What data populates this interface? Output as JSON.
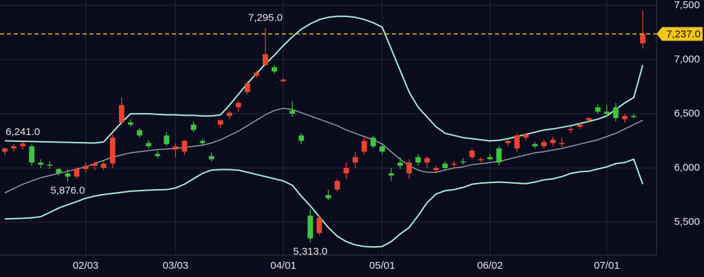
{
  "chart_data": {
    "type": "candlestick",
    "categories": [
      null,
      null,
      null,
      null,
      null,
      null,
      null,
      null,
      null,
      "02/03",
      null,
      null,
      null,
      null,
      null,
      null,
      null,
      null,
      null,
      "03/03",
      null,
      null,
      null,
      null,
      null,
      null,
      null,
      null,
      null,
      null,
      null,
      "04/01",
      null,
      null,
      null,
      null,
      null,
      null,
      null,
      null,
      null,
      null,
      "05/01",
      null,
      null,
      null,
      null,
      null,
      null,
      null,
      null,
      null,
      null,
      null,
      "06/02",
      null,
      null,
      null,
      null,
      null,
      null,
      null,
      null,
      null,
      null,
      null,
      null,
      "07/01",
      null,
      null,
      null,
      null
    ],
    "open": [
      6150,
      6180,
      6200,
      6200,
      6050,
      6030,
      5990,
      5950,
      5920,
      5990,
      6020,
      6000,
      6040,
      6420,
      6420,
      6350,
      6230,
      6130,
      6300,
      6170,
      6150,
      6400,
      6250,
      6110,
      6400,
      6480,
      6560,
      6700,
      6850,
      6950,
      6930,
      6800,
      6530,
      6300,
      5560,
      5400,
      5750,
      5800,
      5950,
      6050,
      6150,
      6280,
      6200,
      5950,
      6050,
      5950,
      6100,
      6050,
      5980,
      6040,
      6030,
      6060,
      6100,
      6070,
      6100,
      6180,
      6230,
      6180,
      6280,
      6220,
      6200,
      6230,
      6220,
      6350,
      6380,
      6440,
      6560,
      6520,
      6560,
      6450,
      6480,
      7150
    ],
    "high": [
      6190,
      6220,
      6241,
      6220,
      6080,
      6060,
      6000,
      5990,
      6010,
      6050,
      6060,
      6060,
      6310,
      6650,
      6450,
      6370,
      6260,
      6160,
      6330,
      6230,
      6260,
      6430,
      6270,
      6140,
      6450,
      6530,
      6620,
      6800,
      6900,
      7295,
      6950,
      6830,
      6620,
      6320,
      5620,
      5560,
      5800,
      5900,
      6050,
      6150,
      6300,
      6300,
      6230,
      6000,
      6100,
      6080,
      6130,
      6110,
      6020,
      6060,
      6060,
      6090,
      6180,
      6100,
      6130,
      6200,
      6260,
      6320,
      6320,
      6240,
      6260,
      6290,
      6280,
      6380,
      6420,
      6470,
      6590,
      6580,
      6600,
      6500,
      6500,
      7450
    ],
    "low": [
      6120,
      6150,
      6170,
      6020,
      6000,
      5990,
      5930,
      5876,
      5900,
      5960,
      5980,
      5980,
      6000,
      6400,
      6380,
      6280,
      6180,
      6090,
      6200,
      6100,
      6120,
      6330,
      6200,
      6060,
      6370,
      6450,
      6520,
      6680,
      6830,
      6940,
      6870,
      6790,
      6470,
      6220,
      5313,
      5380,
      5700,
      5780,
      5900,
      6000,
      6120,
      6180,
      6130,
      5880,
      5990,
      5900,
      6020,
      6000,
      5950,
      5980,
      5990,
      6030,
      6080,
      6050,
      6070,
      6020,
      6200,
      6150,
      6250,
      6180,
      6180,
      6200,
      6190,
      6320,
      6360,
      6420,
      6500,
      6480,
      6430,
      6420,
      6460,
      7100
    ],
    "close": [
      6180,
      6200,
      6225,
      6050,
      6030,
      6020,
      5950,
      5920,
      5990,
      6020,
      6040,
      6040,
      6280,
      6580,
      6400,
      6300,
      6200,
      6110,
      6220,
      6200,
      6250,
      6350,
      6230,
      6080,
      6440,
      6510,
      6600,
      6780,
      6880,
      7050,
      6890,
      6815,
      6500,
      6250,
      5350,
      5540,
      5720,
      5880,
      6000,
      6100,
      6250,
      6200,
      6150,
      5930,
      6020,
      6050,
      6050,
      6090,
      6000,
      6000,
      6040,
      6050,
      6160,
      6080,
      6080,
      6050,
      6250,
      6300,
      6310,
      6200,
      6240,
      6260,
      6230,
      6360,
      6400,
      6460,
      6520,
      6500,
      6460,
      6480,
      6470,
      7237
    ],
    "bands": {
      "upper": [
        6250,
        6248,
        6246,
        6244,
        6242,
        6240,
        6238,
        6236,
        6234,
        6232,
        6230,
        6240,
        6330,
        6420,
        6500,
        6500,
        6500,
        6495,
        6490,
        6490,
        6485,
        6485,
        6480,
        6480,
        6490,
        6580,
        6680,
        6780,
        6870,
        6960,
        7040,
        7130,
        7210,
        7280,
        7330,
        7370,
        7390,
        7400,
        7400,
        7390,
        7370,
        7340,
        7300,
        7100,
        6900,
        6700,
        6560,
        6470,
        6380,
        6320,
        6300,
        6280,
        6270,
        6260,
        6250,
        6255,
        6270,
        6290,
        6310,
        6330,
        6350,
        6360,
        6375,
        6390,
        6410,
        6430,
        6450,
        6480,
        6540,
        6600,
        6650,
        6950
      ],
      "middle": [
        5770,
        5810,
        5850,
        5880,
        5910,
        5930,
        5950,
        5970,
        5990,
        6010,
        6040,
        6070,
        6100,
        6120,
        6140,
        6150,
        6160,
        6170,
        6175,
        6180,
        6190,
        6200,
        6210,
        6230,
        6260,
        6300,
        6340,
        6390,
        6440,
        6490,
        6530,
        6550,
        6540,
        6510,
        6480,
        6450,
        6420,
        6390,
        6350,
        6320,
        6290,
        6260,
        6220,
        6150,
        6080,
        6020,
        5980,
        5960,
        5960,
        5980,
        6000,
        6010,
        6030,
        6040,
        6050,
        6060,
        6080,
        6100,
        6120,
        6140,
        6150,
        6165,
        6180,
        6200,
        6220,
        6240,
        6260,
        6290,
        6320,
        6360,
        6400,
        6440
      ],
      "lower": [
        5530,
        5532,
        5535,
        5540,
        5550,
        5590,
        5630,
        5660,
        5690,
        5720,
        5740,
        5755,
        5765,
        5775,
        5785,
        5790,
        5795,
        5798,
        5800,
        5815,
        5850,
        5900,
        5950,
        5980,
        5985,
        5985,
        5980,
        5960,
        5940,
        5920,
        5900,
        5880,
        5840,
        5740,
        5650,
        5550,
        5450,
        5370,
        5320,
        5290,
        5275,
        5270,
        5275,
        5320,
        5390,
        5450,
        5560,
        5680,
        5760,
        5790,
        5800,
        5820,
        5850,
        5860,
        5865,
        5870,
        5865,
        5860,
        5855,
        5870,
        5890,
        5900,
        5920,
        5950,
        5965,
        5970,
        5990,
        6010,
        6040,
        6050,
        6080,
        5850
      ]
    },
    "up_color": "#e8452c",
    "down_color": "#3ec43e",
    "band_color": "#a6f0d8",
    "middle_color": "#9a9aa6",
    "annotations": [
      {
        "text": "6,241.0",
        "value": 6241
      },
      {
        "text": "5,876.0",
        "value": 5876
      },
      {
        "text": "7,295.0",
        "value": 7295
      },
      {
        "text": "5,313.0",
        "value": 5313
      }
    ],
    "last_price": {
      "value": 7237,
      "label": "7,237.0",
      "color": "#f5c518"
    },
    "ylim": [
      5196,
      7550
    ],
    "yticks": [
      {
        "value": 5500,
        "label": "5,500"
      },
      {
        "value": 6000,
        "label": "6,000"
      },
      {
        "value": 6500,
        "label": "6,500"
      },
      {
        "value": 7000,
        "label": "7,000"
      },
      {
        "value": 7500,
        "label": "7,500"
      }
    ],
    "grid": true
  }
}
